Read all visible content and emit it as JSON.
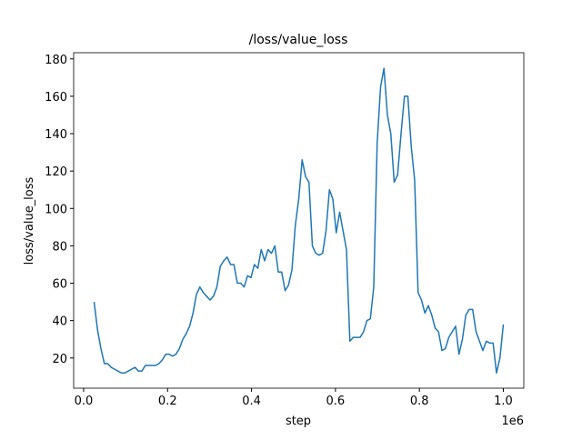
{
  "chart_data": {
    "type": "line",
    "title": "/loss/value_loss",
    "xlabel": "step",
    "ylabel": "loss/value_loss",
    "x_offset_label": "1e6",
    "x": [
      25000,
      33125,
      41250,
      49375,
      57500,
      65625,
      73750,
      81875,
      90000,
      98125,
      106250,
      114375,
      122500,
      130625,
      138750,
      146875,
      155000,
      163125,
      171250,
      179375,
      187500,
      195625,
      203750,
      211875,
      220000,
      228125,
      236250,
      244375,
      252500,
      260625,
      268750,
      276875,
      285000,
      293125,
      301250,
      309375,
      317500,
      325625,
      333750,
      341875,
      350000,
      358125,
      366250,
      374375,
      382500,
      390625,
      398750,
      406875,
      415000,
      423125,
      431250,
      439375,
      447500,
      455625,
      463750,
      471875,
      480000,
      488125,
      496250,
      504375,
      512500,
      520625,
      528750,
      536875,
      545000,
      553125,
      561250,
      569375,
      577500,
      585625,
      593750,
      601875,
      610000,
      618125,
      626250,
      634375,
      642500,
      650625,
      658750,
      666875,
      675000,
      683125,
      691250,
      699375,
      707500,
      715625,
      723750,
      731875,
      740000,
      748125,
      756250,
      764375,
      772500,
      780625,
      788750,
      796875,
      805000,
      813125,
      821250,
      829375,
      837500,
      845625,
      853750,
      861875,
      870000,
      878125,
      886250,
      894375,
      902500,
      910625,
      918750,
      926875,
      935000,
      943125,
      951250,
      959375,
      967500,
      975625,
      983750,
      991875,
      1000000
    ],
    "series": [
      {
        "name": "loss/value_loss",
        "color": "#1f77b4",
        "values": [
          50,
          35,
          25,
          17,
          17,
          15,
          14,
          13,
          12,
          12,
          13,
          14,
          15,
          13,
          13,
          16,
          16,
          16,
          16,
          17,
          19,
          22,
          22,
          21,
          22,
          25,
          30,
          33,
          37,
          44,
          54,
          58,
          55,
          53,
          51,
          53,
          58,
          69,
          72,
          74,
          70,
          70,
          60,
          60,
          58,
          64,
          63,
          70,
          68,
          78,
          72,
          78,
          76,
          80,
          66,
          66,
          56,
          59,
          67,
          91,
          105,
          126,
          117,
          114,
          80,
          76,
          75,
          76,
          88,
          110,
          105,
          87,
          98,
          88,
          78,
          29,
          31,
          31,
          31,
          34,
          40,
          41,
          58,
          135,
          165,
          175,
          150,
          140,
          114,
          118,
          140,
          160,
          160,
          133,
          115,
          55,
          51,
          44,
          48,
          43,
          36,
          34,
          24,
          25,
          31,
          34,
          37,
          22,
          30,
          43,
          46,
          46,
          34,
          29,
          24,
          29,
          28,
          28,
          12,
          20,
          38
        ]
      }
    ],
    "xlim": [
      -23750,
      1048750
    ],
    "ylim": [
      3.85,
      183.3
    ],
    "xticks": [
      {
        "value": 0,
        "label": "0.0"
      },
      {
        "value": 200000,
        "label": "0.2"
      },
      {
        "value": 400000,
        "label": "0.4"
      },
      {
        "value": 600000,
        "label": "0.6"
      },
      {
        "value": 800000,
        "label": "0.8"
      },
      {
        "value": 1000000,
        "label": "1.0"
      }
    ],
    "yticks": [
      20,
      40,
      60,
      80,
      100,
      120,
      140,
      160,
      180
    ]
  }
}
